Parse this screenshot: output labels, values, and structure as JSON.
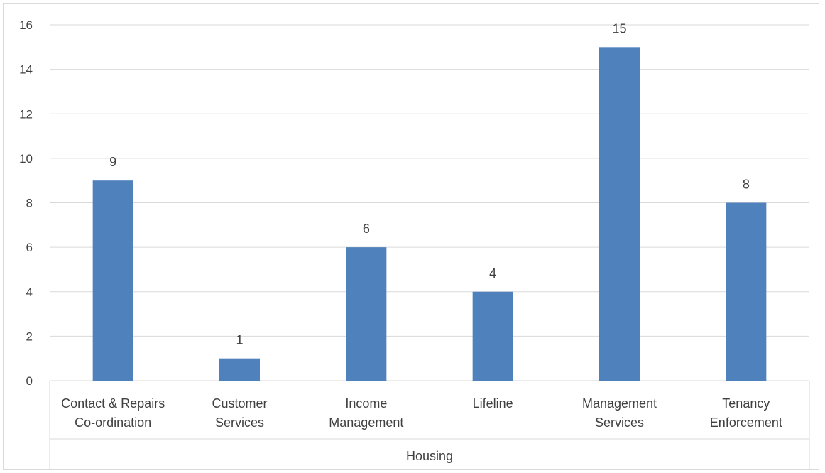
{
  "chart_data": {
    "type": "bar",
    "categories": [
      [
        "Contact & Repairs",
        "Co-ordination"
      ],
      [
        "Customer",
        "Services"
      ],
      [
        "Income",
        "Management"
      ],
      [
        "Lifeline"
      ],
      [
        "Management",
        "Services"
      ],
      [
        "Tenancy",
        "Enforcement"
      ]
    ],
    "group_label": "Housing",
    "series": [
      {
        "values": [
          9,
          1,
          6,
          4,
          15,
          8
        ]
      }
    ],
    "ylim": [
      0,
      16
    ],
    "yticks": [
      0,
      2,
      4,
      6,
      8,
      10,
      12,
      14,
      16
    ],
    "grid": true,
    "data_labels": true,
    "colors": {
      "bar": "#4f81bd",
      "grid": "#d9d9d9",
      "text": "#404040"
    }
  }
}
